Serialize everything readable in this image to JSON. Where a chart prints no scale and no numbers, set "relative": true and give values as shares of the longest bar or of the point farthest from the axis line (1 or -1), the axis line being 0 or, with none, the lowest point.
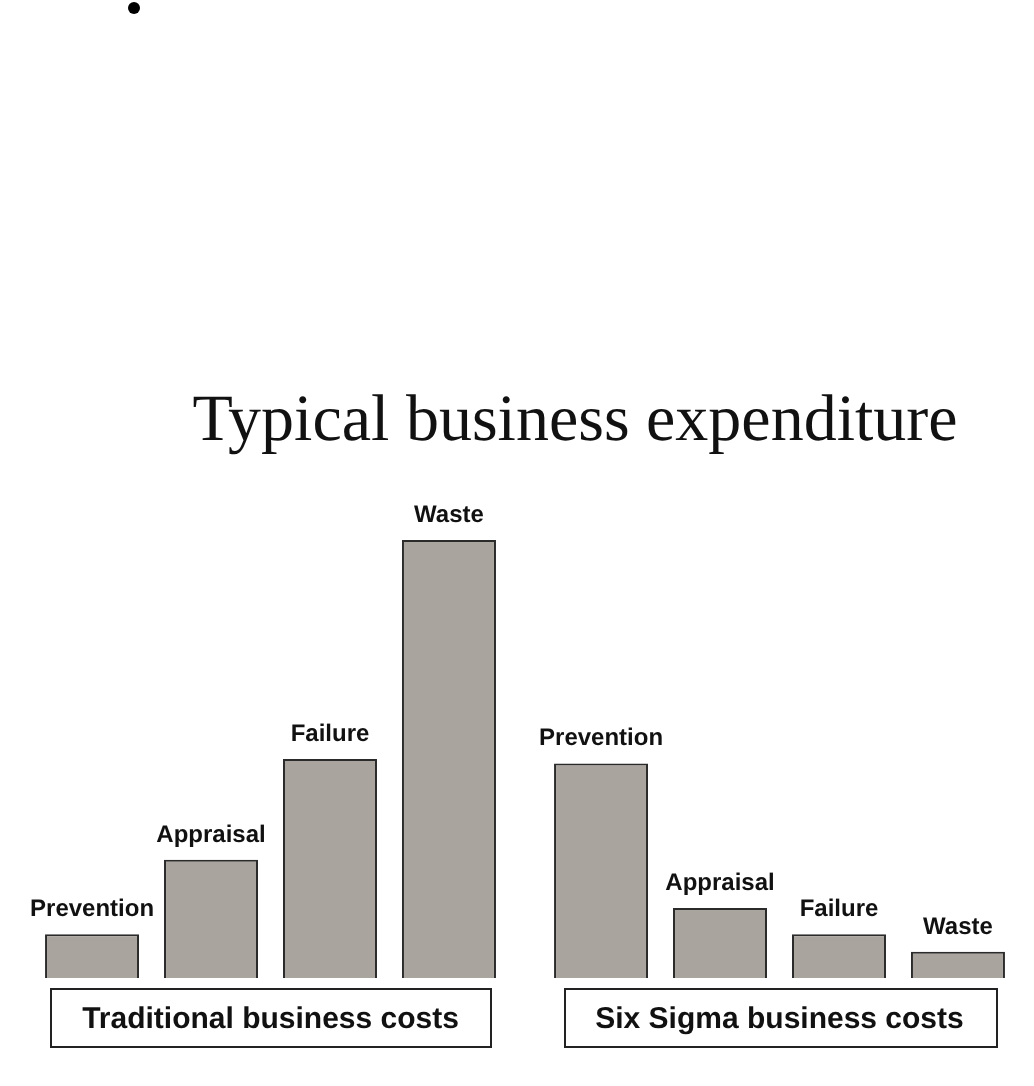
{
  "chart_data": {
    "type": "bar",
    "title": "Typical business expenditure",
    "categories": [
      "Traditional business costs",
      "Six Sigma business costs"
    ],
    "series": [
      {
        "name": "Prevention",
        "color": "#aaa49f",
        "values": [
          0.1,
          0.49
        ]
      },
      {
        "name": "Appraisal",
        "color": "#aaa49f",
        "values": [
          0.27,
          0.16
        ]
      },
      {
        "name": "Failure",
        "color": "#aaa49f",
        "values": [
          0.5,
          0.1
        ]
      },
      {
        "name": "Waste",
        "color": "#aaa49f",
        "values": [
          1,
          0.06
        ]
      }
    ],
    "relative": true
  }
}
